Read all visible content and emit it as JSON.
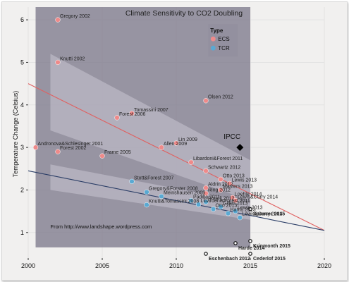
{
  "chart_data": {
    "type": "scatter",
    "title": "Climate Sensitivity to CO2 Doubling",
    "xlabel": "",
    "ylabel": "Temperature Change (Celsius)",
    "xlim": [
      2000,
      2020
    ],
    "ylim": [
      0.4,
      6.3
    ],
    "x_ticks": [
      2000,
      2005,
      2010,
      2015,
      2020
    ],
    "y_ticks": [
      1,
      2,
      3,
      4,
      5,
      6
    ],
    "legend": {
      "title": "Type",
      "placement": "top-right of shaded region",
      "entries": [
        {
          "label": "ECS",
          "color": "#ee8a8a"
        },
        {
          "label": "TCR",
          "color": "#5aa9d2"
        }
      ]
    },
    "series": [
      {
        "name": "ECS",
        "color": "#ee8a8a",
        "points": [
          {
            "label": "Gregory 2002",
            "x": 2002,
            "y": 6.0
          },
          {
            "label": "Knutti 2002",
            "x": 2002,
            "y": 5.0
          },
          {
            "label": "Tomassini 2007",
            "x": 2007,
            "y": 3.8
          },
          {
            "label": "Forest 2006",
            "x": 2006,
            "y": 3.7
          },
          {
            "label": "Olsen 2012",
            "x": 2012,
            "y": 4.1
          },
          {
            "label": "Lin 2009",
            "x": 2010,
            "y": 3.1
          },
          {
            "label": "Allen 2009",
            "x": 2009,
            "y": 3.0
          },
          {
            "label": "Andronova&Schlesinger 2001",
            "x": 2000.5,
            "y": 3.0
          },
          {
            "label": "Forest 2002",
            "x": 2002,
            "y": 2.9
          },
          {
            "label": "Frame 2005",
            "x": 2005,
            "y": 2.8
          },
          {
            "label": "Libardoni&Forest 2011",
            "x": 2011,
            "y": 2.65
          },
          {
            "label": "Schwartz 2012",
            "x": 2012,
            "y": 2.45
          },
          {
            "label": "Otto 2013",
            "x": 2013,
            "y": 2.25
          },
          {
            "label": "Lewis 2013",
            "x": 2013.6,
            "y": 2.15
          },
          {
            "label": "Aldrin 2012",
            "x": 2012,
            "y": 2.05
          },
          {
            "label": "Masters 2013",
            "x": 2013,
            "y": 2.0
          },
          {
            "label": "Ring 2012",
            "x": 2012,
            "y": 1.92
          },
          {
            "label": "Loehle 2014",
            "x": 2013.8,
            "y": 1.82
          },
          {
            "label": "Lewis&Curry 2014",
            "x": 2014,
            "y": 1.75
          }
        ]
      },
      {
        "name": "TCR",
        "color": "#5aa9d2",
        "points": [
          {
            "label": "Stott&Forest 2007",
            "x": 2007,
            "y": 2.2
          },
          {
            "label": "Gregory&Forster 2008",
            "x": 2008,
            "y": 1.95
          },
          {
            "label": "Meinshausen 2009",
            "x": 2009,
            "y": 1.85
          },
          {
            "label": "Knutti&Tomassini 2008",
            "x": 2008,
            "y": 1.65
          },
          {
            "label": "Padilla 2011",
            "x": 2011,
            "y": 1.75
          },
          {
            "label": "Rogelj 2012",
            "x": 2012,
            "y": 1.72
          },
          {
            "label": "Libardoni&Forest 2011",
            "x": 2011.5,
            "y": 1.66
          },
          {
            "label": "Gillett 2013",
            "x": 2013,
            "y": 1.6
          },
          {
            "label": "Otto 2013",
            "x": 2012.5,
            "y": 1.55
          },
          {
            "label": "Lewis 2013",
            "x": 2014,
            "y": 1.5
          },
          {
            "label": "Harris 2013",
            "x": 2013.5,
            "y": 1.45
          },
          {
            "label": "Lewis&Curry 2014",
            "x": 2014.3,
            "y": 1.35
          }
        ]
      }
    ],
    "extra_points": [
      {
        "label": "IPCC",
        "x": 2014.3,
        "y": 3.0,
        "marker": "diamond",
        "color": "#000000"
      },
      {
        "label": "Spencer 2015",
        "x": 2015,
        "y": 1.55,
        "marker": "open-circle"
      },
      {
        "label": "Krinmonth 2015",
        "x": 2015,
        "y": 0.8,
        "marker": "open-circle"
      },
      {
        "label": "Harde 2014",
        "x": 2014,
        "y": 0.75,
        "marker": "open-circle"
      },
      {
        "label": "Cederlof 2015",
        "x": 2015,
        "y": 0.5,
        "marker": "open-circle"
      },
      {
        "label": "Eschenbach 2012",
        "x": 2012,
        "y": 0.5,
        "marker": "open-circle"
      }
    ],
    "trend_lines": [
      {
        "name": "ECS",
        "color": "#e06060",
        "from": [
          2000,
          4.5
        ],
        "to": [
          2020,
          1.05
        ]
      },
      {
        "name": "TCR",
        "color": "#2a3d66",
        "from": [
          2000,
          2.45
        ],
        "to": [
          2020,
          1.05
        ]
      }
    ],
    "confidence_bands": [
      {
        "name": "ECS",
        "upper": [
          [
            2001.5,
            5.2
          ],
          [
            2015,
            2.7
          ]
        ],
        "lower": [
          [
            2001.5,
            3.4
          ],
          [
            2015,
            1.75
          ]
        ]
      },
      {
        "name": "TCR",
        "upper": [
          [
            2001.5,
            2.6
          ],
          [
            2015,
            1.7
          ]
        ],
        "lower": [
          [
            2001.5,
            2.0
          ],
          [
            2015,
            1.3
          ]
        ]
      }
    ],
    "shaded_region": {
      "x": [
        2000.5,
        2015
      ],
      "y": [
        0.65,
        6.3
      ]
    },
    "annotations": [
      {
        "text": "From http://www.landshape.wordpress.com",
        "x": 2001.5,
        "y": 1.1
      },
      {
        "text": "IPCC",
        "x": 2013.2,
        "y": 3.2
      }
    ],
    "grid": true
  }
}
